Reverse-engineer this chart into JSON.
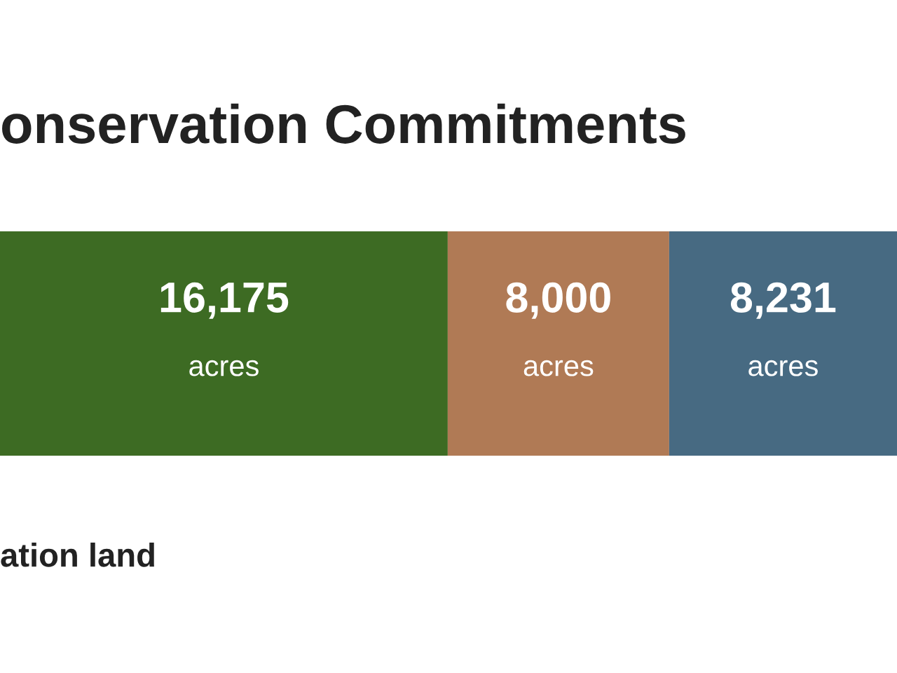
{
  "chart_data": {
    "type": "bar",
    "title": "onservation Commitments",
    "orientation": "horizontal",
    "stacked": true,
    "categories": [
      null
    ],
    "series": [
      {
        "color": "#3d6b23",
        "values": [
          16175
        ],
        "value_labels": [
          "16,175\nacres"
        ]
      },
      {
        "color": "#b07a55",
        "values": [
          8000
        ],
        "value_labels": [
          "8,000\nacres"
        ]
      },
      {
        "color": "#476a82",
        "values": [
          8231
        ],
        "value_labels": [
          "8,231\nacres"
        ]
      }
    ],
    "xlim": [
      0,
      32406
    ],
    "tick_labels": false,
    "grid": false,
    "legend": false,
    "annotations": [
      "ation land"
    ]
  }
}
